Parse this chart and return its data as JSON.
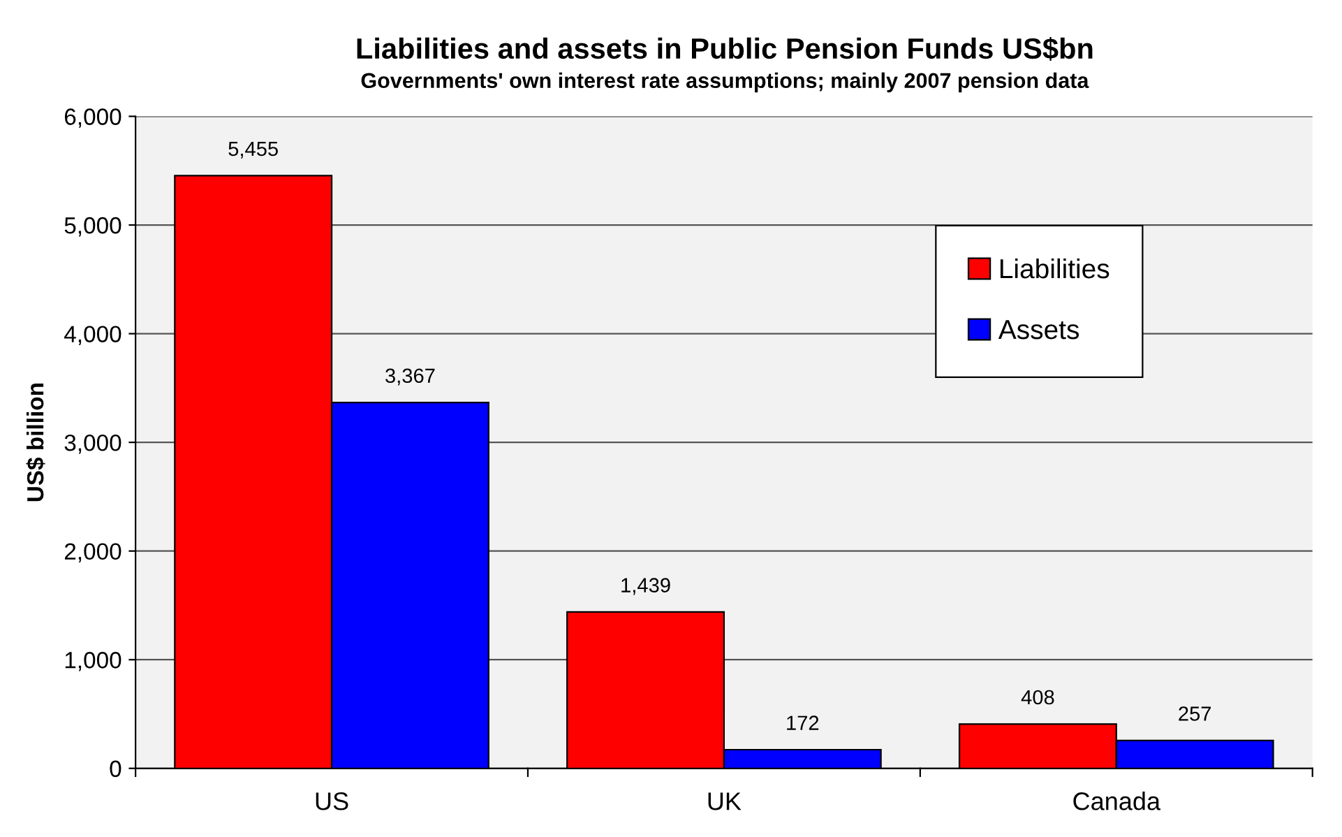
{
  "chart_data": {
    "type": "bar",
    "title": "Liabilities and assets in Public Pension Funds US$bn",
    "subtitle": "Governments' own interest rate assumptions; mainly 2007 pension data",
    "ylabel": "US$ billion",
    "categories": [
      "US",
      "UK",
      "Canada"
    ],
    "series": [
      {
        "name": "Liabilities",
        "color": "#ff0000",
        "values": [
          5455,
          1439,
          408
        ],
        "value_labels": [
          "5,455",
          "1,439",
          "408"
        ]
      },
      {
        "name": "Assets",
        "color": "#0000ff",
        "values": [
          3367,
          172,
          257
        ],
        "value_labels": [
          "3,367",
          "172",
          "257"
        ]
      }
    ],
    "ylim": [
      0,
      6000
    ],
    "yticks": [
      0,
      {
        "value": 1000,
        "label": "1,000"
      },
      {
        "value": 2000,
        "label": "2,000"
      },
      {
        "value": 3000,
        "label": "3,000"
      },
      {
        "value": 4000,
        "label": "4,000"
      },
      {
        "value": 5000,
        "label": "5,000"
      },
      {
        "value": 6000,
        "label": "6,000"
      }
    ],
    "grid": "y",
    "legend": "top right"
  }
}
